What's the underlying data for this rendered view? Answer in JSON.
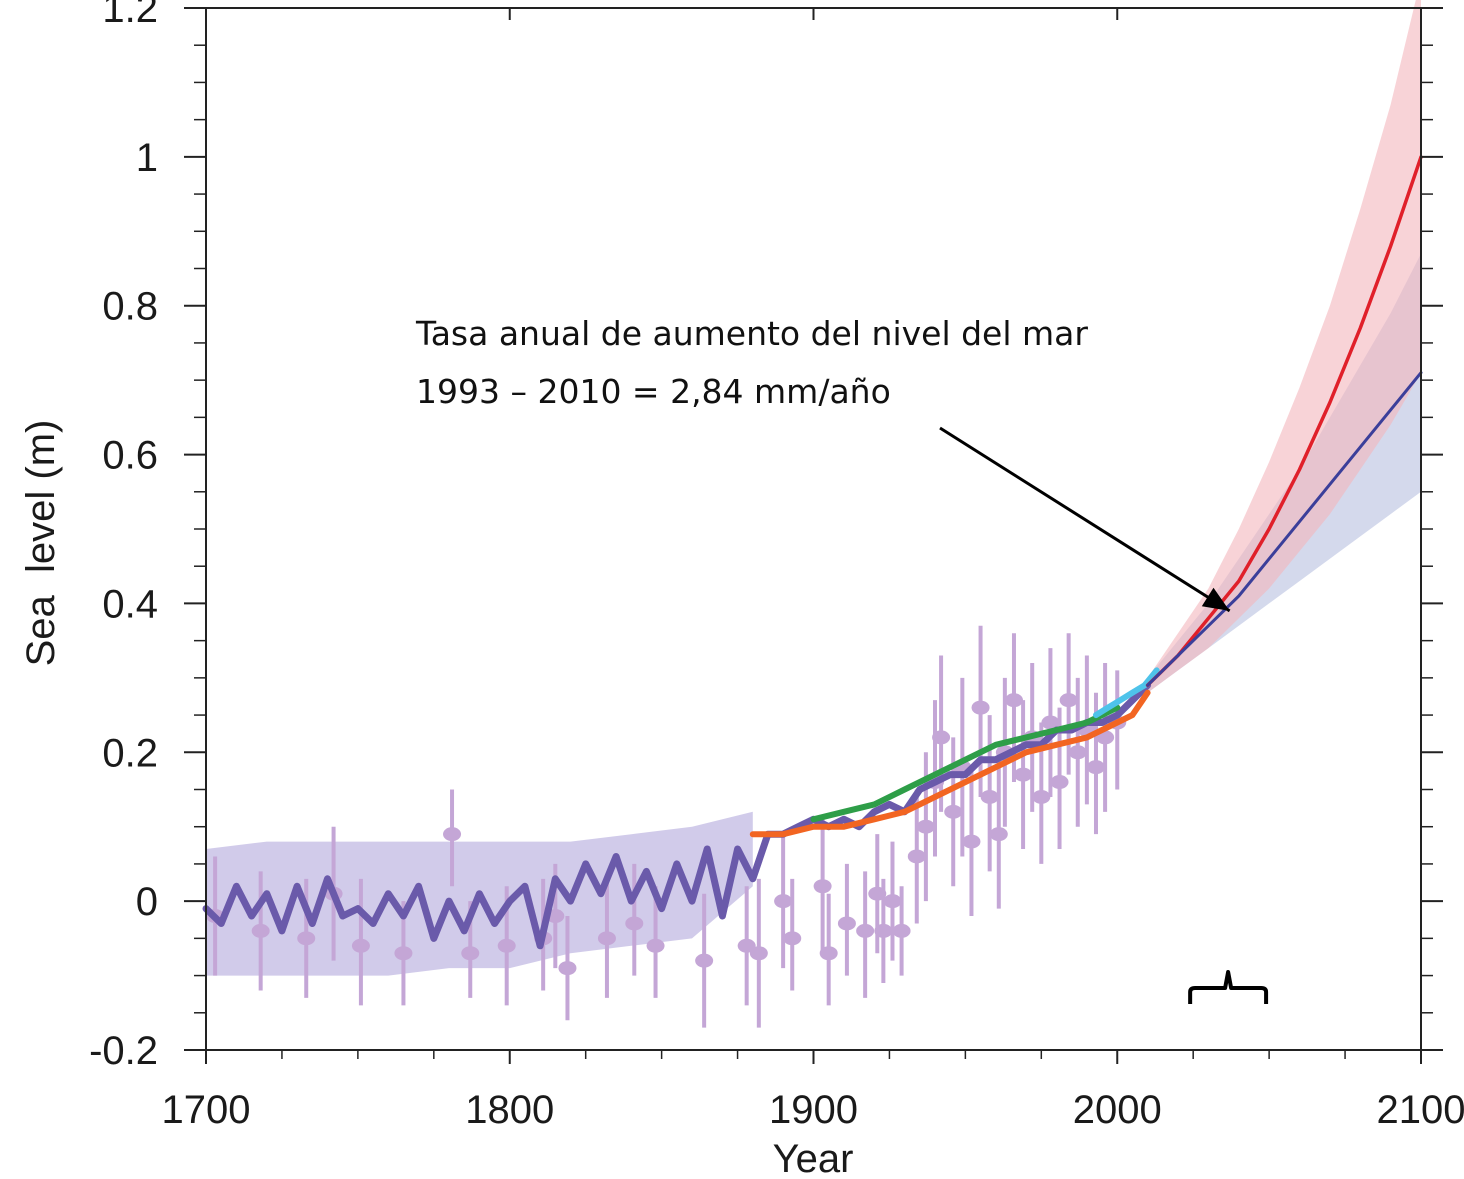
{
  "chart_data": {
    "type": "line",
    "title": "",
    "xlabel": "Year",
    "ylabel": "Sea  level (m)",
    "xlim": [
      1700,
      2100
    ],
    "ylim": [
      -0.2,
      1.2
    ],
    "x_ticks": [
      1700,
      1800,
      1900,
      2000,
      2100
    ],
    "x_tick_labels": [
      "1700",
      "1800",
      "1900",
      "2000",
      "2100"
    ],
    "y_ticks": [
      -0.2,
      0,
      0.2,
      0.4,
      0.6,
      0.8,
      1,
      1.2
    ],
    "y_tick_labels": [
      "-0.2",
      "0",
      "0.2",
      "0.4",
      "0.6",
      "0.8",
      "1",
      "1.2"
    ],
    "grid": false,
    "annotation": {
      "line1": "Tasa anual de aumento del nivel del mar",
      "line2": "1993 – 2010 = 2,84 mm/año",
      "arrow_target": [
        2037,
        0.39
      ]
    },
    "bracket_years": [
      2024,
      2049
    ],
    "colors": {
      "reconstruction": "#6a5aaa",
      "reconstruction_band": "#c9c2e6",
      "proxy_points": "#c4a6d6",
      "orange_series": "#f26522",
      "green_series": "#2e9e48",
      "cyan_series": "#4ec3ea",
      "high_projection": "#e0202a",
      "high_band": "#f4b6bd",
      "low_projection": "#3b3f9a",
      "low_band": "#b8bfe0"
    },
    "series": [
      {
        "name": "",
        "color": "#6a5aaa",
        "x": [
          1700,
          1705,
          1710,
          1715,
          1720,
          1725,
          1730,
          1735,
          1740,
          1745,
          1750,
          1755,
          1760,
          1765,
          1770,
          1775,
          1780,
          1785,
          1790,
          1795,
          1800,
          1805,
          1810,
          1815,
          1820,
          1825,
          1830,
          1835,
          1840,
          1845,
          1850,
          1855,
          1860,
          1865,
          1870,
          1875,
          1880,
          1885,
          1890,
          1895,
          1900,
          1905,
          1910,
          1915,
          1920,
          1925,
          1930,
          1935,
          1940,
          1945,
          1950,
          1955,
          1960,
          1965,
          1970,
          1975,
          1980,
          1985,
          1990,
          1995,
          2000,
          2005,
          2010
        ],
        "y": [
          -0.01,
          -0.03,
          0.02,
          -0.02,
          0.01,
          -0.04,
          0.02,
          -0.03,
          0.03,
          -0.02,
          -0.01,
          -0.03,
          0.01,
          -0.02,
          0.02,
          -0.05,
          0.0,
          -0.04,
          0.01,
          -0.03,
          0.0,
          0.02,
          -0.06,
          0.03,
          0.0,
          0.05,
          0.01,
          0.06,
          0.0,
          0.04,
          -0.01,
          0.05,
          0.0,
          0.07,
          -0.02,
          0.07,
          0.03,
          0.09,
          0.09,
          0.1,
          0.11,
          0.1,
          0.11,
          0.1,
          0.12,
          0.13,
          0.12,
          0.15,
          0.16,
          0.17,
          0.17,
          0.19,
          0.19,
          0.2,
          0.21,
          0.21,
          0.23,
          0.23,
          0.24,
          0.24,
          0.25,
          0.27,
          0.29
        ]
      },
      {
        "name": "",
        "color": "#f26522",
        "x": [
          1880,
          1890,
          1900,
          1910,
          1920,
          1930,
          1940,
          1950,
          1960,
          1970,
          1980,
          1990,
          2000,
          2005,
          2010
        ],
        "y": [
          0.09,
          0.09,
          0.1,
          0.1,
          0.11,
          0.12,
          0.14,
          0.16,
          0.18,
          0.2,
          0.21,
          0.22,
          0.24,
          0.25,
          0.28
        ]
      },
      {
        "name": "",
        "color": "#2e9e48",
        "x": [
          1900,
          1910,
          1920,
          1930,
          1940,
          1950,
          1960,
          1970,
          1980,
          1990,
          2000
        ],
        "y": [
          0.11,
          0.12,
          0.13,
          0.15,
          0.17,
          0.19,
          0.21,
          0.22,
          0.23,
          0.24,
          0.26
        ]
      },
      {
        "name": "",
        "color": "#4ec3ea",
        "x": [
          1993,
          1997,
          2001,
          2005,
          2009,
          2013
        ],
        "y": [
          0.25,
          0.26,
          0.27,
          0.28,
          0.29,
          0.31
        ]
      },
      {
        "name": "",
        "color": "#e0202a",
        "x": [
          2010,
          2020,
          2030,
          2040,
          2050,
          2060,
          2070,
          2080,
          2090,
          2100
        ],
        "y": [
          0.29,
          0.33,
          0.38,
          0.43,
          0.5,
          0.58,
          0.67,
          0.77,
          0.88,
          1.0
        ]
      },
      {
        "name": "",
        "color": "#3b3f9a",
        "x": [
          2010,
          2020,
          2030,
          2040,
          2050,
          2060,
          2070,
          2080,
          2090,
          2100
        ],
        "y": [
          0.29,
          0.33,
          0.37,
          0.41,
          0.46,
          0.51,
          0.56,
          0.61,
          0.66,
          0.71
        ]
      }
    ],
    "bands": [
      {
        "color": "#c9c2e6",
        "x": [
          1700,
          1720,
          1740,
          1760,
          1780,
          1800,
          1820,
          1840,
          1860,
          1880
        ],
        "lower": [
          -0.1,
          -0.1,
          -0.1,
          -0.1,
          -0.09,
          -0.09,
          -0.07,
          -0.06,
          -0.05,
          0.02
        ],
        "upper": [
          0.07,
          0.08,
          0.08,
          0.08,
          0.08,
          0.08,
          0.08,
          0.09,
          0.1,
          0.12
        ]
      },
      {
        "color": "#b8bfe0",
        "x": [
          2010,
          2020,
          2030,
          2040,
          2050,
          2060,
          2070,
          2080,
          2090,
          2100
        ],
        "lower": [
          0.28,
          0.31,
          0.34,
          0.37,
          0.4,
          0.43,
          0.46,
          0.49,
          0.52,
          0.55
        ],
        "upper": [
          0.3,
          0.35,
          0.4,
          0.46,
          0.52,
          0.58,
          0.65,
          0.72,
          0.79,
          0.87
        ]
      },
      {
        "color": "#f4b6bd",
        "x": [
          2010,
          2020,
          2030,
          2040,
          2050,
          2060,
          2070,
          2080,
          2090,
          2100
        ],
        "lower": [
          0.28,
          0.31,
          0.34,
          0.38,
          0.42,
          0.47,
          0.52,
          0.58,
          0.64,
          0.71
        ],
        "upper": [
          0.3,
          0.36,
          0.42,
          0.5,
          0.59,
          0.69,
          0.8,
          0.93,
          1.07,
          1.24
        ]
      }
    ],
    "proxy_points": [
      {
        "x": 1703,
        "y": -0.02,
        "lo": -0.1,
        "hi": 0.06
      },
      {
        "x": 1718,
        "y": -0.04,
        "lo": -0.12,
        "hi": 0.04
      },
      {
        "x": 1733,
        "y": -0.05,
        "lo": -0.13,
        "hi": 0.03
      },
      {
        "x": 1742,
        "y": 0.01,
        "lo": -0.08,
        "hi": 0.1
      },
      {
        "x": 1751,
        "y": -0.06,
        "lo": -0.14,
        "hi": 0.03
      },
      {
        "x": 1765,
        "y": -0.07,
        "lo": -0.14,
        "hi": 0.0
      },
      {
        "x": 1781,
        "y": 0.09,
        "lo": 0.02,
        "hi": 0.15
      },
      {
        "x": 1787,
        "y": -0.07,
        "lo": -0.13,
        "hi": 0.0
      },
      {
        "x": 1799,
        "y": -0.06,
        "lo": -0.14,
        "hi": 0.02
      },
      {
        "x": 1811,
        "y": -0.05,
        "lo": -0.12,
        "hi": 0.03
      },
      {
        "x": 1815,
        "y": -0.02,
        "lo": -0.09,
        "hi": 0.05
      },
      {
        "x": 1819,
        "y": -0.09,
        "lo": -0.16,
        "hi": -0.02
      },
      {
        "x": 1832,
        "y": -0.05,
        "lo": -0.13,
        "hi": 0.03
      },
      {
        "x": 1841,
        "y": -0.03,
        "lo": -0.1,
        "hi": 0.05
      },
      {
        "x": 1848,
        "y": -0.06,
        "lo": -0.13,
        "hi": 0.02
      },
      {
        "x": 1864,
        "y": -0.08,
        "lo": -0.17,
        "hi": 0.01
      },
      {
        "x": 1878,
        "y": -0.06,
        "lo": -0.14,
        "hi": 0.02
      },
      {
        "x": 1882,
        "y": -0.07,
        "lo": -0.17,
        "hi": 0.03
      },
      {
        "x": 1890,
        "y": 0.0,
        "lo": -0.09,
        "hi": 0.09
      },
      {
        "x": 1893,
        "y": -0.05,
        "lo": -0.12,
        "hi": 0.03
      },
      {
        "x": 1903,
        "y": 0.02,
        "lo": -0.07,
        "hi": 0.11
      },
      {
        "x": 1905,
        "y": -0.07,
        "lo": -0.14,
        "hi": 0.01
      },
      {
        "x": 1911,
        "y": -0.03,
        "lo": -0.1,
        "hi": 0.05
      },
      {
        "x": 1917,
        "y": -0.04,
        "lo": -0.13,
        "hi": 0.04
      },
      {
        "x": 1921,
        "y": 0.01,
        "lo": -0.07,
        "hi": 0.09
      },
      {
        "x": 1923,
        "y": -0.04,
        "lo": -0.11,
        "hi": 0.03
      },
      {
        "x": 1926,
        "y": 0.0,
        "lo": -0.08,
        "hi": 0.08
      },
      {
        "x": 1929,
        "y": -0.04,
        "lo": -0.1,
        "hi": 0.02
      },
      {
        "x": 1934,
        "y": 0.06,
        "lo": -0.03,
        "hi": 0.15
      },
      {
        "x": 1937,
        "y": 0.1,
        "lo": 0.0,
        "hi": 0.2
      },
      {
        "x": 1940,
        "y": 0.16,
        "lo": 0.06,
        "hi": 0.27
      },
      {
        "x": 1942,
        "y": 0.22,
        "lo": 0.12,
        "hi": 0.33
      },
      {
        "x": 1946,
        "y": 0.12,
        "lo": 0.02,
        "hi": 0.22
      },
      {
        "x": 1949,
        "y": 0.18,
        "lo": 0.06,
        "hi": 0.3
      },
      {
        "x": 1952,
        "y": 0.08,
        "lo": -0.02,
        "hi": 0.18
      },
      {
        "x": 1955,
        "y": 0.26,
        "lo": 0.14,
        "hi": 0.37
      },
      {
        "x": 1958,
        "y": 0.14,
        "lo": 0.04,
        "hi": 0.25
      },
      {
        "x": 1961,
        "y": 0.09,
        "lo": -0.01,
        "hi": 0.19
      },
      {
        "x": 1963,
        "y": 0.2,
        "lo": 0.1,
        "hi": 0.3
      },
      {
        "x": 1966,
        "y": 0.27,
        "lo": 0.16,
        "hi": 0.36
      },
      {
        "x": 1969,
        "y": 0.17,
        "lo": 0.07,
        "hi": 0.27
      },
      {
        "x": 1972,
        "y": 0.22,
        "lo": 0.12,
        "hi": 0.32
      },
      {
        "x": 1975,
        "y": 0.14,
        "lo": 0.05,
        "hi": 0.24
      },
      {
        "x": 1978,
        "y": 0.24,
        "lo": 0.14,
        "hi": 0.34
      },
      {
        "x": 1981,
        "y": 0.16,
        "lo": 0.07,
        "hi": 0.26
      },
      {
        "x": 1984,
        "y": 0.27,
        "lo": 0.17,
        "hi": 0.36
      },
      {
        "x": 1987,
        "y": 0.2,
        "lo": 0.1,
        "hi": 0.3
      },
      {
        "x": 1990,
        "y": 0.23,
        "lo": 0.13,
        "hi": 0.33
      },
      {
        "x": 1993,
        "y": 0.18,
        "lo": 0.09,
        "hi": 0.28
      },
      {
        "x": 1996,
        "y": 0.22,
        "lo": 0.12,
        "hi": 0.32
      },
      {
        "x": 2000,
        "y": 0.24,
        "lo": 0.15,
        "hi": 0.31
      }
    ]
  }
}
